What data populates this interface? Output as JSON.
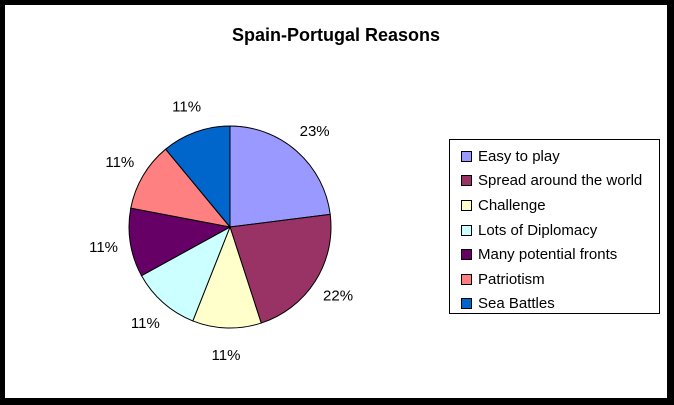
{
  "chart_data": {
    "type": "pie",
    "title": "Spain-Portugal Reasons",
    "categories": [
      "Easy to play",
      "Spread around the world",
      "Challenge",
      "Lots of Diplomacy",
      "Many potential fronts",
      "Patriotism",
      "Sea Battles"
    ],
    "values": [
      23,
      22,
      11,
      11,
      11,
      11,
      11
    ],
    "labels": [
      "23%",
      "22%",
      "11%",
      "11%",
      "11%",
      "11%",
      "11%"
    ],
    "colors": [
      "#9999ff",
      "#993366",
      "#ffffcc",
      "#ccffff",
      "#660066",
      "#ff8080",
      "#0066cc"
    ],
    "legend_position": "right",
    "background": "#ffffff",
    "border_color": "#000000"
  }
}
